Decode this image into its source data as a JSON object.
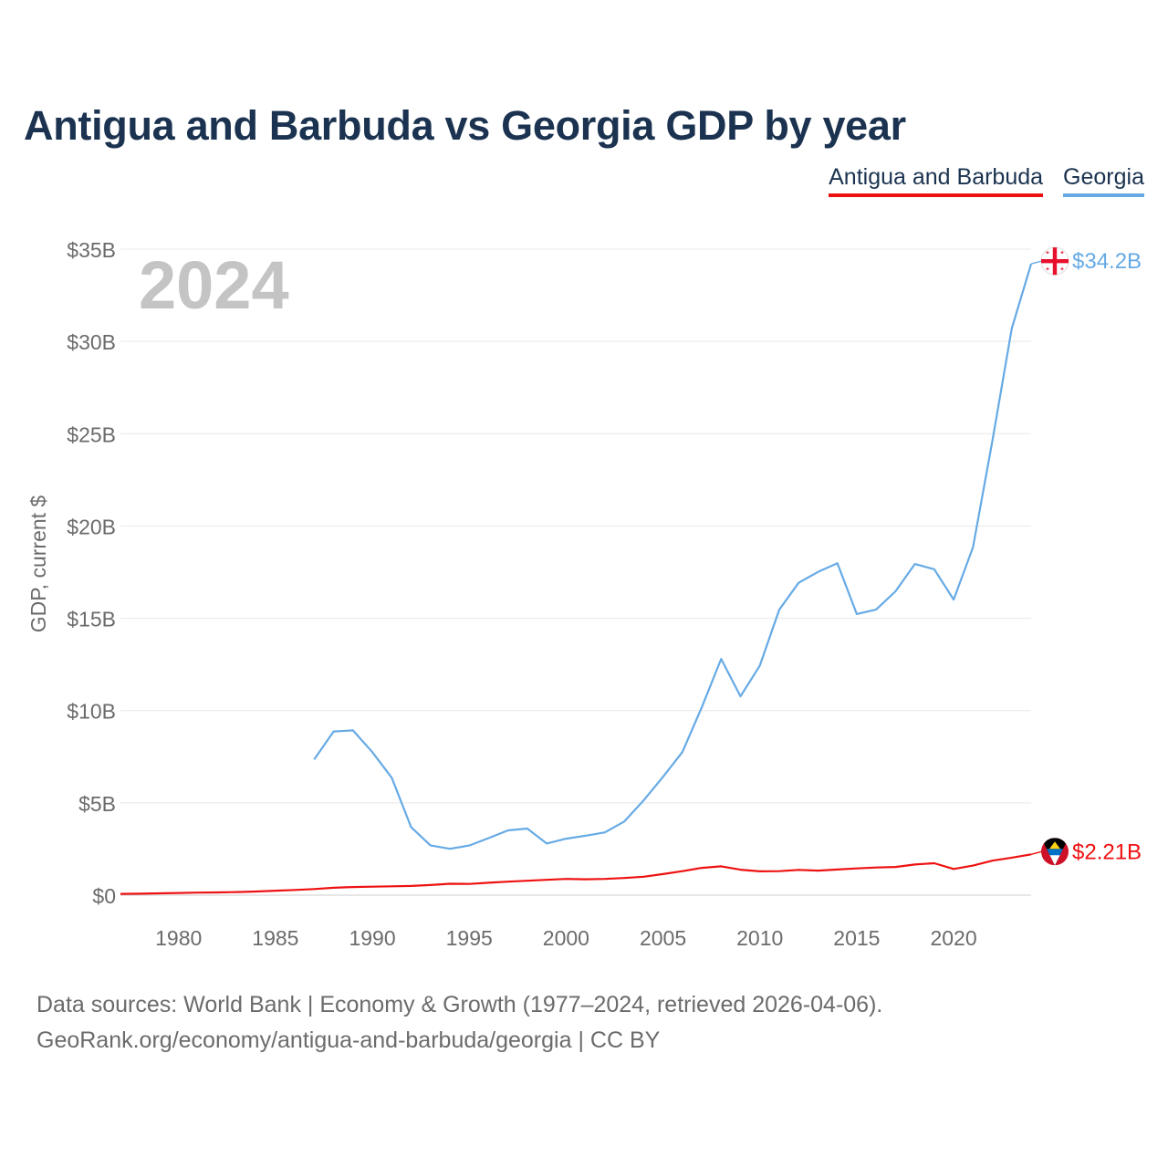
{
  "chart_data": {
    "type": "line",
    "title": "Antigua and Barbuda vs Georgia GDP by year",
    "ylabel": "GDP, current $",
    "xlabel": "",
    "year_label": "2024",
    "xlim": [
      1977,
      2024
    ],
    "ylim": [
      0,
      35
    ],
    "grid": true,
    "legend_position": "top-right",
    "x_ticks": [
      1980,
      1985,
      1990,
      1995,
      2000,
      2005,
      2010,
      2015,
      2020
    ],
    "x_tick_labels": [
      "1980",
      "1985",
      "1990",
      "1995",
      "2000",
      "2005",
      "2010",
      "2015",
      "2020"
    ],
    "y_ticks": [
      0,
      5,
      10,
      15,
      20,
      25,
      30,
      35
    ],
    "y_tick_labels": [
      "$0",
      "$5B",
      "$10B",
      "$15B",
      "$20B",
      "$25B",
      "$30B",
      "$35B"
    ],
    "series": [
      {
        "name": "Antigua and Barbuda",
        "color": "#ee1111",
        "end_label": "$2.21B",
        "flag": "antigua-flag",
        "x": [
          1977,
          1978,
          1979,
          1980,
          1981,
          1982,
          1983,
          1984,
          1985,
          1986,
          1987,
          1988,
          1989,
          1990,
          1991,
          1992,
          1993,
          1994,
          1995,
          1996,
          1997,
          1998,
          1999,
          2000,
          2001,
          2002,
          2003,
          2004,
          2005,
          2006,
          2007,
          2008,
          2009,
          2010,
          2011,
          2012,
          2013,
          2014,
          2015,
          2016,
          2017,
          2018,
          2019,
          2020,
          2021,
          2022,
          2023,
          2024
        ],
        "values": [
          0.07,
          0.08,
          0.1,
          0.12,
          0.14,
          0.15,
          0.17,
          0.2,
          0.24,
          0.28,
          0.33,
          0.4,
          0.44,
          0.46,
          0.48,
          0.5,
          0.55,
          0.62,
          0.61,
          0.67,
          0.73,
          0.78,
          0.83,
          0.88,
          0.86,
          0.88,
          0.93,
          1.0,
          1.14,
          1.3,
          1.48,
          1.56,
          1.38,
          1.29,
          1.3,
          1.37,
          1.33,
          1.39,
          1.45,
          1.5,
          1.53,
          1.66,
          1.73,
          1.42,
          1.6,
          1.87,
          2.03,
          2.21
        ]
      },
      {
        "name": "Georgia",
        "color": "#66aae5",
        "end_label": "$34.2B",
        "flag": "georgia-flag",
        "x": [
          1987,
          1988,
          1989,
          1990,
          1991,
          1992,
          1993,
          1994,
          1995,
          1996,
          1997,
          1998,
          1999,
          2000,
          2001,
          2002,
          2003,
          2004,
          2005,
          2006,
          2007,
          2008,
          2009,
          2010,
          2011,
          2012,
          2013,
          2014,
          2015,
          2016,
          2017,
          2018,
          2019,
          2020,
          2021,
          2022,
          2023,
          2024
        ],
        "values": [
          7.35,
          8.87,
          8.93,
          7.75,
          6.36,
          3.69,
          2.7,
          2.51,
          2.69,
          3.09,
          3.51,
          3.61,
          2.8,
          3.06,
          3.22,
          3.4,
          3.99,
          5.13,
          6.41,
          7.75,
          10.17,
          12.8,
          10.77,
          12.44,
          15.47,
          16.92,
          17.51,
          17.98,
          15.23,
          15.47,
          16.46,
          17.94,
          17.66,
          16.01,
          18.85,
          24.6,
          30.7,
          34.2
        ]
      }
    ]
  },
  "footer": {
    "source_line1": "Data sources: World Bank | Economy & Growth (1977–2024, retrieved 2026-04-06).",
    "source_line2": "GeoRank.org/economy/antigua-and-barbuda/georgia | CC BY"
  }
}
